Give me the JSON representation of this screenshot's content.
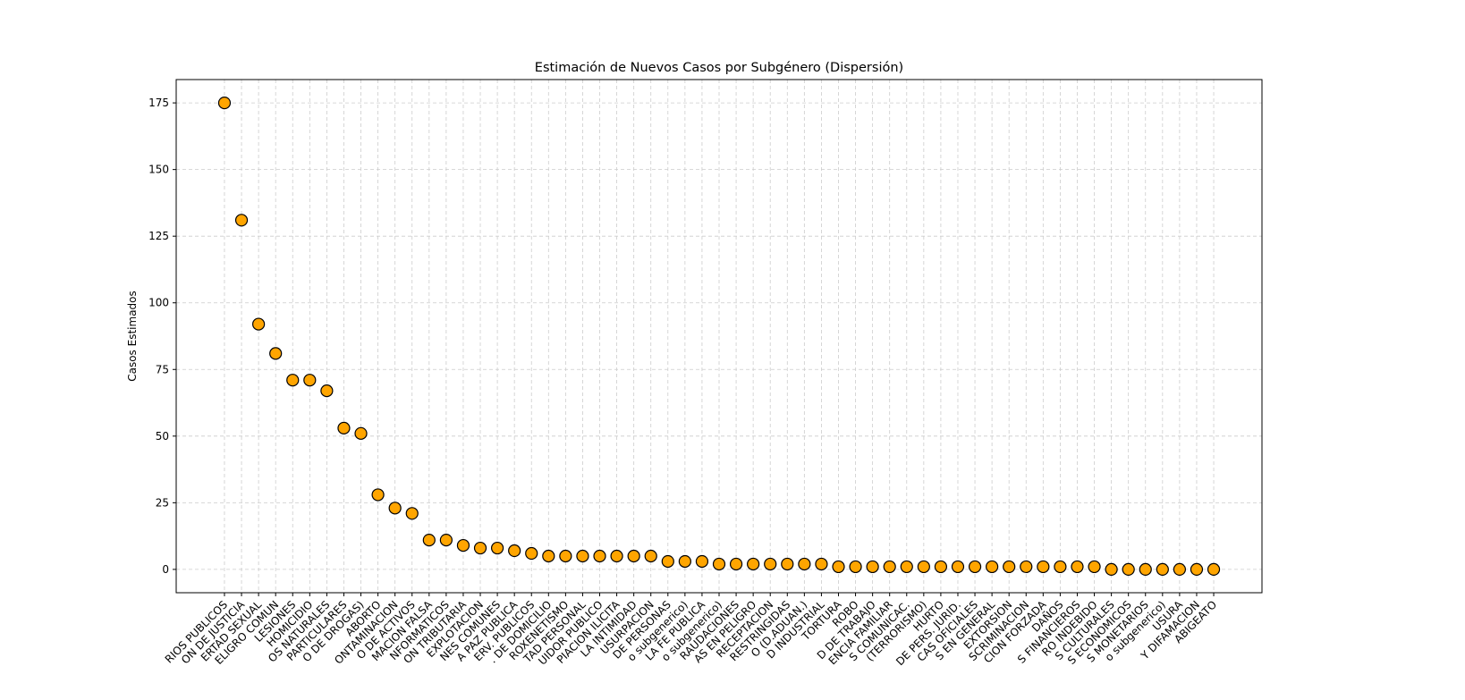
{
  "chart_data": {
    "type": "scatter",
    "title": "Estimación de Nuevos Casos por Subgénero (Dispersión)",
    "y_label": "Casos Estimados",
    "categories": [
      "RIOS PUBLICOS",
      "ON DE JUSTICIA",
      "ERTAD SEXUAL",
      "ELIGRO COMUN",
      "LESIONES",
      "HOMICIDIO",
      "OS NATURALES",
      "PARTICULARES",
      "O DE DROGAS)",
      "ABORTO",
      "ONTAMINACION",
      "O DE ACTIVOS",
      "MACION FALSA",
      "NFORMATICOS",
      "ON TRIBUTARIA",
      "EXPLOTACION",
      "NES COMUNES",
      "A PAZ PUBLICA",
      "ERV. PUBLICOS",
      ". DE DOMICILIO",
      "ROXENETISMO",
      "TAD PERSONAL",
      "UIDOR PUBLICO",
      "PIACION ILICITA",
      "LA INTIMIDAD",
      "USURPACION",
      "DE PERSONAS",
      "o subgenerico)",
      "LA FE PUBLICA",
      "o subgenerico)",
      "RAUDACIONES",
      "AS EN PELIGRO",
      "RECEPTACION",
      "RESTRINGIDAS",
      "O (D.ADUAN.)",
      "D INDUSTRIAL",
      "TORTURA",
      "ROBO",
      "D DE TRABAJO",
      "ENCIA FAMILIAR",
      "S COMUNICAC.",
      "(TERRORISMO)",
      "HURTO",
      "DE PERS. JURID.",
      "CAS OFICIALES",
      "S EN GENERAL",
      "EXTORSION",
      "SCRIMINACION",
      "CION FORZADA",
      "DAÑOS",
      "S FINANCIEROS",
      "RO INDEBIDO",
      "S CULTURALES",
      "S ECONOMICOS",
      "S MONETARIOS",
      "o subgenerico)",
      "USURA",
      "Y DIFAMACION",
      "ABIGEATO"
    ],
    "values": [
      175,
      131,
      92,
      81,
      71,
      71,
      67,
      53,
      51,
      28,
      23,
      21,
      11,
      11,
      9,
      8,
      8,
      7,
      6,
      5,
      5,
      5,
      5,
      5,
      5,
      5,
      3,
      3,
      3,
      2,
      2,
      2,
      2,
      2,
      2,
      2,
      1,
      1,
      1,
      1,
      1,
      1,
      1,
      1,
      1,
      1,
      1,
      1,
      1,
      1,
      1,
      1,
      0,
      0,
      0,
      0,
      0,
      0,
      0
    ],
    "color": "#ffa500",
    "ylim": [
      -8.75,
      183.75
    ],
    "yticks": [
      0,
      25,
      50,
      75,
      100,
      125,
      150,
      175
    ],
    "grid": true
  }
}
